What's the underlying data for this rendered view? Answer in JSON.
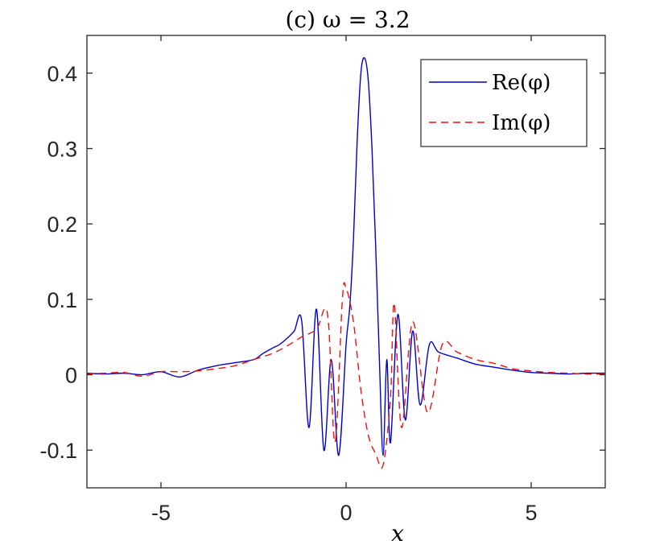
{
  "chart_data": {
    "type": "line",
    "title": "(c) ω = 3.2",
    "xlabel": "x",
    "ylabel": "",
    "xlim": [
      -7,
      7
    ],
    "ylim": [
      -0.15,
      0.45
    ],
    "xticks": [
      -5,
      0,
      5
    ],
    "xtick_labels": [
      "-5",
      "0",
      "5"
    ],
    "yticks": [
      -0.1,
      0,
      0.1,
      0.2,
      0.3,
      0.4
    ],
    "ytick_labels": [
      "-0.1",
      "0",
      "0.1",
      "0.2",
      "0.3",
      "0.4"
    ],
    "grid": false,
    "legend_position": "top-right",
    "series": [
      {
        "name": "Re(φ)",
        "color": "#0000cc",
        "style": "solid",
        "x": [
          -7.0,
          -6.5,
          -6.0,
          -5.5,
          -5.0,
          -4.5,
          -4.0,
          -3.5,
          -3.0,
          -2.5,
          -2.25,
          -2.0,
          -1.8,
          -1.6,
          -1.4,
          -1.2,
          -1.0,
          -0.8,
          -0.6,
          -0.4,
          -0.2,
          0.0,
          0.1,
          0.2,
          0.3,
          0.4,
          0.5,
          0.6,
          0.7,
          0.8,
          0.9,
          1.0,
          1.1,
          1.2,
          1.4,
          1.6,
          1.8,
          2.0,
          2.25,
          2.5,
          3.0,
          3.5,
          4.0,
          4.5,
          5.0,
          5.5,
          6.0,
          6.5,
          7.0
        ],
        "y": [
          0.002,
          0.001,
          0.002,
          0.0,
          0.004,
          -0.003,
          0.006,
          0.012,
          0.016,
          0.02,
          0.028,
          0.035,
          0.04,
          0.048,
          0.058,
          0.072,
          -0.07,
          0.087,
          -0.1,
          0.02,
          -0.107,
          0.04,
          0.09,
          0.18,
          0.31,
          0.4,
          0.42,
          0.39,
          0.3,
          0.17,
          0.02,
          -0.107,
          0.02,
          -0.09,
          0.08,
          -0.06,
          0.058,
          -0.04,
          0.04,
          0.03,
          0.022,
          0.014,
          0.01,
          0.006,
          0.003,
          0.002,
          0.001,
          0.002,
          0.002
        ]
      },
      {
        "name": "Im(φ)",
        "color": "#ee1111",
        "style": "dashed",
        "x": [
          -7.0,
          -6.5,
          -6.0,
          -5.5,
          -5.0,
          -4.5,
          -4.0,
          -3.5,
          -3.0,
          -2.5,
          -2.0,
          -1.6,
          -1.2,
          -0.8,
          -0.5,
          -0.3,
          -0.1,
          0.0,
          0.2,
          0.4,
          0.6,
          0.8,
          1.0,
          1.2,
          1.3,
          1.5,
          1.8,
          2.2,
          2.6,
          3.0,
          3.5,
          4.0,
          4.5,
          5.0,
          5.5,
          6.0,
          6.5,
          7.0
        ],
        "y": [
          0.001,
          0.002,
          0.003,
          -0.002,
          0.004,
          0.004,
          0.005,
          0.008,
          0.012,
          0.02,
          0.028,
          0.038,
          0.05,
          0.06,
          0.08,
          -0.09,
          0.1,
          0.115,
          0.07,
          -0.02,
          -0.08,
          -0.105,
          -0.12,
          -0.03,
          0.095,
          -0.07,
          0.07,
          -0.05,
          0.04,
          0.03,
          0.02,
          0.015,
          0.008,
          0.005,
          0.003,
          0.002,
          0.001,
          0.001
        ]
      }
    ]
  }
}
